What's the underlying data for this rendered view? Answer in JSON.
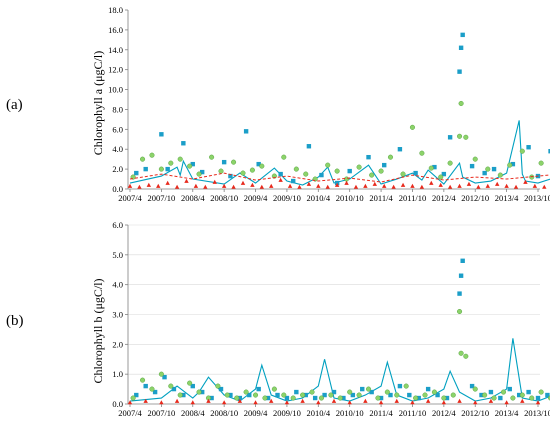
{
  "chart_data": [
    {
      "panel_label": "(a)",
      "type": "line",
      "title": "",
      "xlabel": "",
      "ylabel": "Chlorophyll a (μgC/l)",
      "yticks": [
        "0.0",
        "2.0",
        "4.0",
        "6.0",
        "8.0",
        "10.0",
        "12.0",
        "14.0",
        "16.0",
        "18.0"
      ],
      "ylim": [
        0,
        18
      ],
      "xticks": [
        "2007/4",
        "2007/10",
        "2008/4",
        "2008/10",
        "2009/4",
        "2009/10",
        "2010/4",
        "2010/10",
        "2011/4",
        "2011/10",
        "2012/4",
        "2012/10",
        "2013/4",
        "2013/10"
      ],
      "grid": false,
      "legend": "none",
      "series": [
        {
          "style": "line",
          "color": "#00a0c0",
          "x": [
            0.0,
            1.0,
            1.5,
            1.6,
            1.7,
            2.0,
            3.0,
            3.5,
            4.0,
            4.6,
            5.0,
            5.5,
            6.0,
            6.3,
            6.5,
            7.0,
            7.6,
            8.0,
            8.5,
            9.0,
            9.3,
            9.5,
            10.0,
            10.5,
            10.6,
            11.0,
            11.5,
            12.0,
            12.4,
            12.5,
            12.6,
            13.0,
            13.6,
            14.0
          ],
          "y": [
            0.6,
            1.3,
            2.2,
            1.4,
            2.8,
            1.0,
            0.5,
            1.6,
            0.6,
            2.1,
            0.8,
            0.4,
            1.2,
            2.2,
            0.6,
            1.0,
            2.4,
            0.5,
            1.0,
            1.6,
            0.9,
            1.9,
            0.5,
            2.6,
            1.2,
            0.6,
            0.8,
            1.6,
            6.9,
            1.5,
            0.8,
            0.6,
            1.2,
            1.0
          ]
        },
        {
          "style": "square",
          "color": "#1b9ec8",
          "x": [
            0.2,
            0.5,
            1.0,
            1.2,
            1.7,
            2.0,
            2.3,
            3.0,
            3.2,
            3.7,
            4.1,
            4.8,
            5.2,
            5.7,
            6.1,
            6.6,
            7.0,
            7.6,
            8.1,
            8.6,
            9.1,
            9.7,
            10.0,
            10.2,
            10.5,
            10.55,
            10.6,
            10.9,
            11.3,
            11.6,
            12.2,
            12.7,
            13.0,
            13.4,
            13.9
          ],
          "y": [
            1.6,
            2.0,
            5.5,
            2.0,
            4.6,
            2.5,
            1.7,
            2.7,
            1.3,
            5.8,
            2.5,
            1.5,
            0.8,
            4.3,
            1.4,
            0.6,
            1.8,
            3.2,
            2.4,
            4.0,
            1.6,
            2.2,
            1.5,
            5.2,
            11.8,
            14.2,
            15.5,
            2.3,
            1.6,
            2.0,
            2.5,
            4.2,
            1.3,
            3.8,
            2.0
          ]
        },
        {
          "style": "circle",
          "color": "#8cd36a",
          "x": [
            0.1,
            0.4,
            0.7,
            1.0,
            1.3,
            1.6,
            1.9,
            2.2,
            2.6,
            2.9,
            3.3,
            3.6,
            3.9,
            4.2,
            4.6,
            4.9,
            5.3,
            5.6,
            5.9,
            6.3,
            6.6,
            6.9,
            7.3,
            7.7,
            8.0,
            8.3,
            8.7,
            9.0,
            9.3,
            9.6,
            9.9,
            10.2,
            10.5,
            10.55,
            10.7,
            11.0,
            11.4,
            11.8,
            12.1,
            12.5,
            12.8,
            13.1,
            13.5,
            13.8,
            14.0
          ],
          "y": [
            1.2,
            3.0,
            3.4,
            2.0,
            2.6,
            3.0,
            2.3,
            1.5,
            3.2,
            1.8,
            2.7,
            1.6,
            1.9,
            2.3,
            1.3,
            3.2,
            2.0,
            1.5,
            1.0,
            2.4,
            1.8,
            1.0,
            2.2,
            1.4,
            1.8,
            3.2,
            1.5,
            6.2,
            3.6,
            2.1,
            1.2,
            2.6,
            5.3,
            8.6,
            5.2,
            3.0,
            2.0,
            1.4,
            2.4,
            3.8,
            1.2,
            2.6,
            4.6,
            4.9,
            3.2
          ]
        },
        {
          "style": "triangle",
          "color": "#e8291c",
          "x": [
            0.0,
            0.3,
            0.6,
            0.9,
            1.2,
            1.5,
            1.8,
            2.1,
            2.4,
            2.7,
            3.0,
            3.3,
            3.6,
            3.9,
            4.2,
            4.5,
            4.8,
            5.1,
            5.4,
            5.7,
            6.0,
            6.3,
            6.6,
            6.9,
            7.2,
            7.5,
            7.8,
            8.1,
            8.4,
            8.7,
            9.0,
            9.3,
            9.6,
            9.9,
            10.2,
            10.5,
            10.8,
            11.1,
            11.4,
            11.7,
            12.0,
            12.3,
            12.6,
            12.9,
            13.2,
            13.5,
            13.8,
            13.95
          ],
          "y": [
            0.3,
            0.2,
            0.4,
            0.3,
            0.6,
            0.2,
            0.8,
            0.3,
            0.2,
            0.7,
            0.3,
            0.2,
            0.6,
            0.4,
            0.2,
            0.3,
            0.9,
            0.3,
            0.2,
            0.5,
            0.3,
            0.2,
            0.4,
            0.6,
            0.2,
            0.3,
            0.5,
            0.3,
            0.2,
            0.4,
            0.3,
            0.2,
            0.6,
            0.4,
            0.2,
            0.3,
            0.5,
            0.2,
            0.3,
            0.5,
            0.3,
            0.2,
            0.7,
            0.3,
            0.2,
            0.4,
            2.4,
            6.4
          ]
        },
        {
          "style": "dashed",
          "color": "#e8291c",
          "x": [
            0.0,
            1.0,
            2.0,
            3.0,
            4.0,
            5.0,
            6.0,
            7.0,
            8.0,
            9.0,
            10.0,
            11.0,
            12.0,
            13.0,
            14.0
          ],
          "y": [
            1.0,
            1.5,
            1.0,
            1.6,
            0.9,
            1.3,
            0.8,
            1.1,
            0.7,
            1.4,
            0.9,
            1.2,
            1.0,
            1.3,
            1.6
          ]
        }
      ]
    },
    {
      "panel_label": "(b)",
      "type": "line",
      "title": "",
      "xlabel": "",
      "ylabel": "Chlorophyll b (μgC/l)",
      "yticks": [
        "0.0",
        "1.0",
        "2.0",
        "3.0",
        "4.0",
        "5.0",
        "6.0"
      ],
      "ylim": [
        0,
        6
      ],
      "xticks": [
        "2007/4",
        "2007/10",
        "2008/4",
        "2008/10",
        "2009/4",
        "2009/10",
        "2010/4",
        "2010/10",
        "2011/4",
        "2011/10",
        "2012/4",
        "2012/10",
        "2013/4",
        "2013/10"
      ],
      "grid": true,
      "legend": "none",
      "series": [
        {
          "style": "line",
          "color": "#00a0c0",
          "x": [
            0.0,
            1.0,
            1.5,
            2.0,
            2.2,
            2.5,
            3.0,
            3.5,
            4.0,
            4.2,
            4.5,
            5.0,
            5.5,
            6.0,
            6.2,
            6.5,
            7.0,
            7.5,
            8.0,
            8.2,
            8.5,
            9.0,
            9.5,
            10.0,
            10.2,
            10.5,
            11.0,
            11.5,
            12.0,
            12.2,
            12.5,
            13.0,
            13.5,
            14.0
          ],
          "y": [
            0.1,
            0.2,
            0.6,
            0.2,
            0.4,
            0.9,
            0.3,
            0.1,
            0.5,
            1.3,
            0.3,
            0.1,
            0.2,
            0.6,
            1.5,
            0.2,
            0.1,
            0.3,
            0.6,
            1.4,
            0.3,
            0.1,
            0.2,
            0.5,
            1.1,
            0.4,
            0.1,
            0.2,
            0.5,
            2.2,
            0.2,
            0.1,
            0.3,
            0.1
          ]
        },
        {
          "style": "square",
          "color": "#1b9ec8",
          "x": [
            0.2,
            0.5,
            0.8,
            1.1,
            1.4,
            1.7,
            2.0,
            2.3,
            2.6,
            2.9,
            3.2,
            3.5,
            3.8,
            4.1,
            4.4,
            4.7,
            5.0,
            5.3,
            5.6,
            5.9,
            6.2,
            6.5,
            6.8,
            7.1,
            7.4,
            7.7,
            8.0,
            8.3,
            8.6,
            8.9,
            9.2,
            9.5,
            9.8,
            10.1,
            10.5,
            10.55,
            10.6,
            10.9,
            11.2,
            11.5,
            11.8,
            12.1,
            12.4,
            12.7,
            13.0,
            13.3,
            13.6,
            13.9
          ],
          "y": [
            0.3,
            0.6,
            0.4,
            0.9,
            0.5,
            0.3,
            0.6,
            0.4,
            0.2,
            0.5,
            0.3,
            0.2,
            0.3,
            0.5,
            0.2,
            0.3,
            0.2,
            0.4,
            0.3,
            0.2,
            0.3,
            0.4,
            0.2,
            0.3,
            0.5,
            0.4,
            0.2,
            0.3,
            0.6,
            0.3,
            0.2,
            0.5,
            0.3,
            0.2,
            3.7,
            4.3,
            4.8,
            0.6,
            0.3,
            0.4,
            0.2,
            0.5,
            0.3,
            0.4,
            0.2,
            0.3,
            0.2,
            0.3
          ]
        },
        {
          "style": "circle",
          "color": "#8cd36a",
          "x": [
            0.1,
            0.4,
            0.7,
            1.0,
            1.3,
            1.6,
            1.9,
            2.2,
            2.5,
            2.8,
            3.1,
            3.4,
            3.7,
            4.0,
            4.3,
            4.6,
            4.9,
            5.2,
            5.5,
            5.8,
            6.1,
            6.4,
            6.7,
            7.0,
            7.3,
            7.6,
            7.9,
            8.2,
            8.5,
            8.8,
            9.1,
            9.4,
            9.7,
            10.0,
            10.3,
            10.5,
            10.55,
            10.7,
            11.0,
            11.3,
            11.6,
            11.9,
            12.2,
            12.5,
            12.8,
            13.1,
            13.4,
            13.7,
            14.0
          ],
          "y": [
            0.2,
            0.8,
            0.5,
            1.0,
            0.6,
            0.3,
            0.7,
            0.4,
            0.2,
            0.6,
            0.3,
            0.2,
            0.4,
            0.3,
            0.2,
            0.5,
            0.3,
            0.2,
            0.3,
            0.4,
            0.2,
            0.3,
            0.2,
            0.4,
            0.3,
            0.5,
            0.2,
            0.4,
            0.3,
            0.6,
            0.2,
            0.3,
            0.4,
            0.2,
            0.3,
            3.1,
            1.7,
            1.6,
            0.5,
            0.3,
            0.2,
            0.4,
            0.2,
            0.3,
            0.2,
            0.4,
            0.2,
            0.3,
            0.2
          ]
        },
        {
          "style": "triangle",
          "color": "#e8291c",
          "x": [
            0.0,
            0.5,
            1.0,
            1.5,
            2.0,
            2.5,
            3.0,
            3.5,
            4.0,
            4.5,
            5.0,
            5.5,
            6.0,
            6.5,
            7.0,
            7.5,
            8.0,
            8.5,
            9.0,
            9.5,
            10.0,
            10.5,
            11.0,
            11.5,
            12.0,
            12.5,
            13.0,
            13.5,
            14.0
          ],
          "y": [
            0.05,
            0.1,
            0.05,
            0.1,
            0.05,
            0.1,
            0.05,
            0.1,
            0.05,
            0.1,
            0.05,
            0.1,
            0.05,
            0.1,
            0.05,
            0.1,
            0.05,
            0.1,
            0.05,
            0.1,
            0.05,
            0.1,
            0.05,
            0.1,
            0.05,
            0.1,
            0.05,
            0.1,
            0.05
          ]
        }
      ]
    }
  ]
}
